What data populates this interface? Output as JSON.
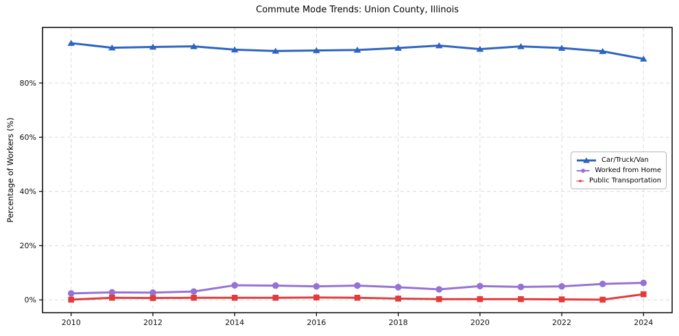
{
  "chart_data": {
    "type": "line",
    "title": "Commute Mode Trends: Union County, Illinois",
    "xlabel": "",
    "ylabel": "Percentage of Workers (%)",
    "x": [
      2010,
      2011,
      2012,
      2013,
      2014,
      2015,
      2016,
      2017,
      2018,
      2019,
      2020,
      2021,
      2022,
      2023,
      2024
    ],
    "series": [
      {
        "name": "Car/Truck/Van",
        "marker": "triangle",
        "color": "#2d63c1",
        "values": [
          94.7,
          93.0,
          93.3,
          93.5,
          92.3,
          91.8,
          92.0,
          92.2,
          92.9,
          93.8,
          92.5,
          93.5,
          92.9,
          91.7,
          88.9
        ]
      },
      {
        "name": "Worked from Home",
        "marker": "circle",
        "color": "#9672d4",
        "values": [
          2.4,
          2.8,
          2.7,
          3.1,
          5.4,
          5.3,
          5.0,
          5.3,
          4.7,
          3.9,
          5.1,
          4.8,
          5.0,
          5.9,
          6.3
        ]
      },
      {
        "name": "Public Transportation",
        "marker": "square",
        "color": "#e23b3b",
        "values": [
          0.1,
          0.8,
          0.7,
          0.8,
          0.8,
          0.8,
          0.9,
          0.8,
          0.5,
          0.3,
          0.3,
          0.3,
          0.2,
          0.1,
          2.1
        ]
      }
    ],
    "xticks": {
      "values": [
        2010,
        2012,
        2014,
        2016,
        2018,
        2020,
        2022,
        2024
      ],
      "labels": [
        "2010",
        "2012",
        "2014",
        "2016",
        "2018",
        "2020",
        "2022",
        "2024"
      ]
    },
    "yticks": {
      "values": [
        0,
        20,
        40,
        60,
        80
      ],
      "labels": [
        "0%",
        "20%",
        "40%",
        "60%",
        "80%"
      ]
    },
    "xlim": [
      2009.3,
      2024.7
    ],
    "ylim": [
      -4.7,
      100.5
    ],
    "grid": true,
    "grid_style": "dashed",
    "legend_position": "center right"
  },
  "colors": {
    "background": "#ffffff",
    "grid": "#d9d9d9",
    "spine": "#000000",
    "tick_label": "#111111",
    "legend_border": "#b5b5b5"
  }
}
